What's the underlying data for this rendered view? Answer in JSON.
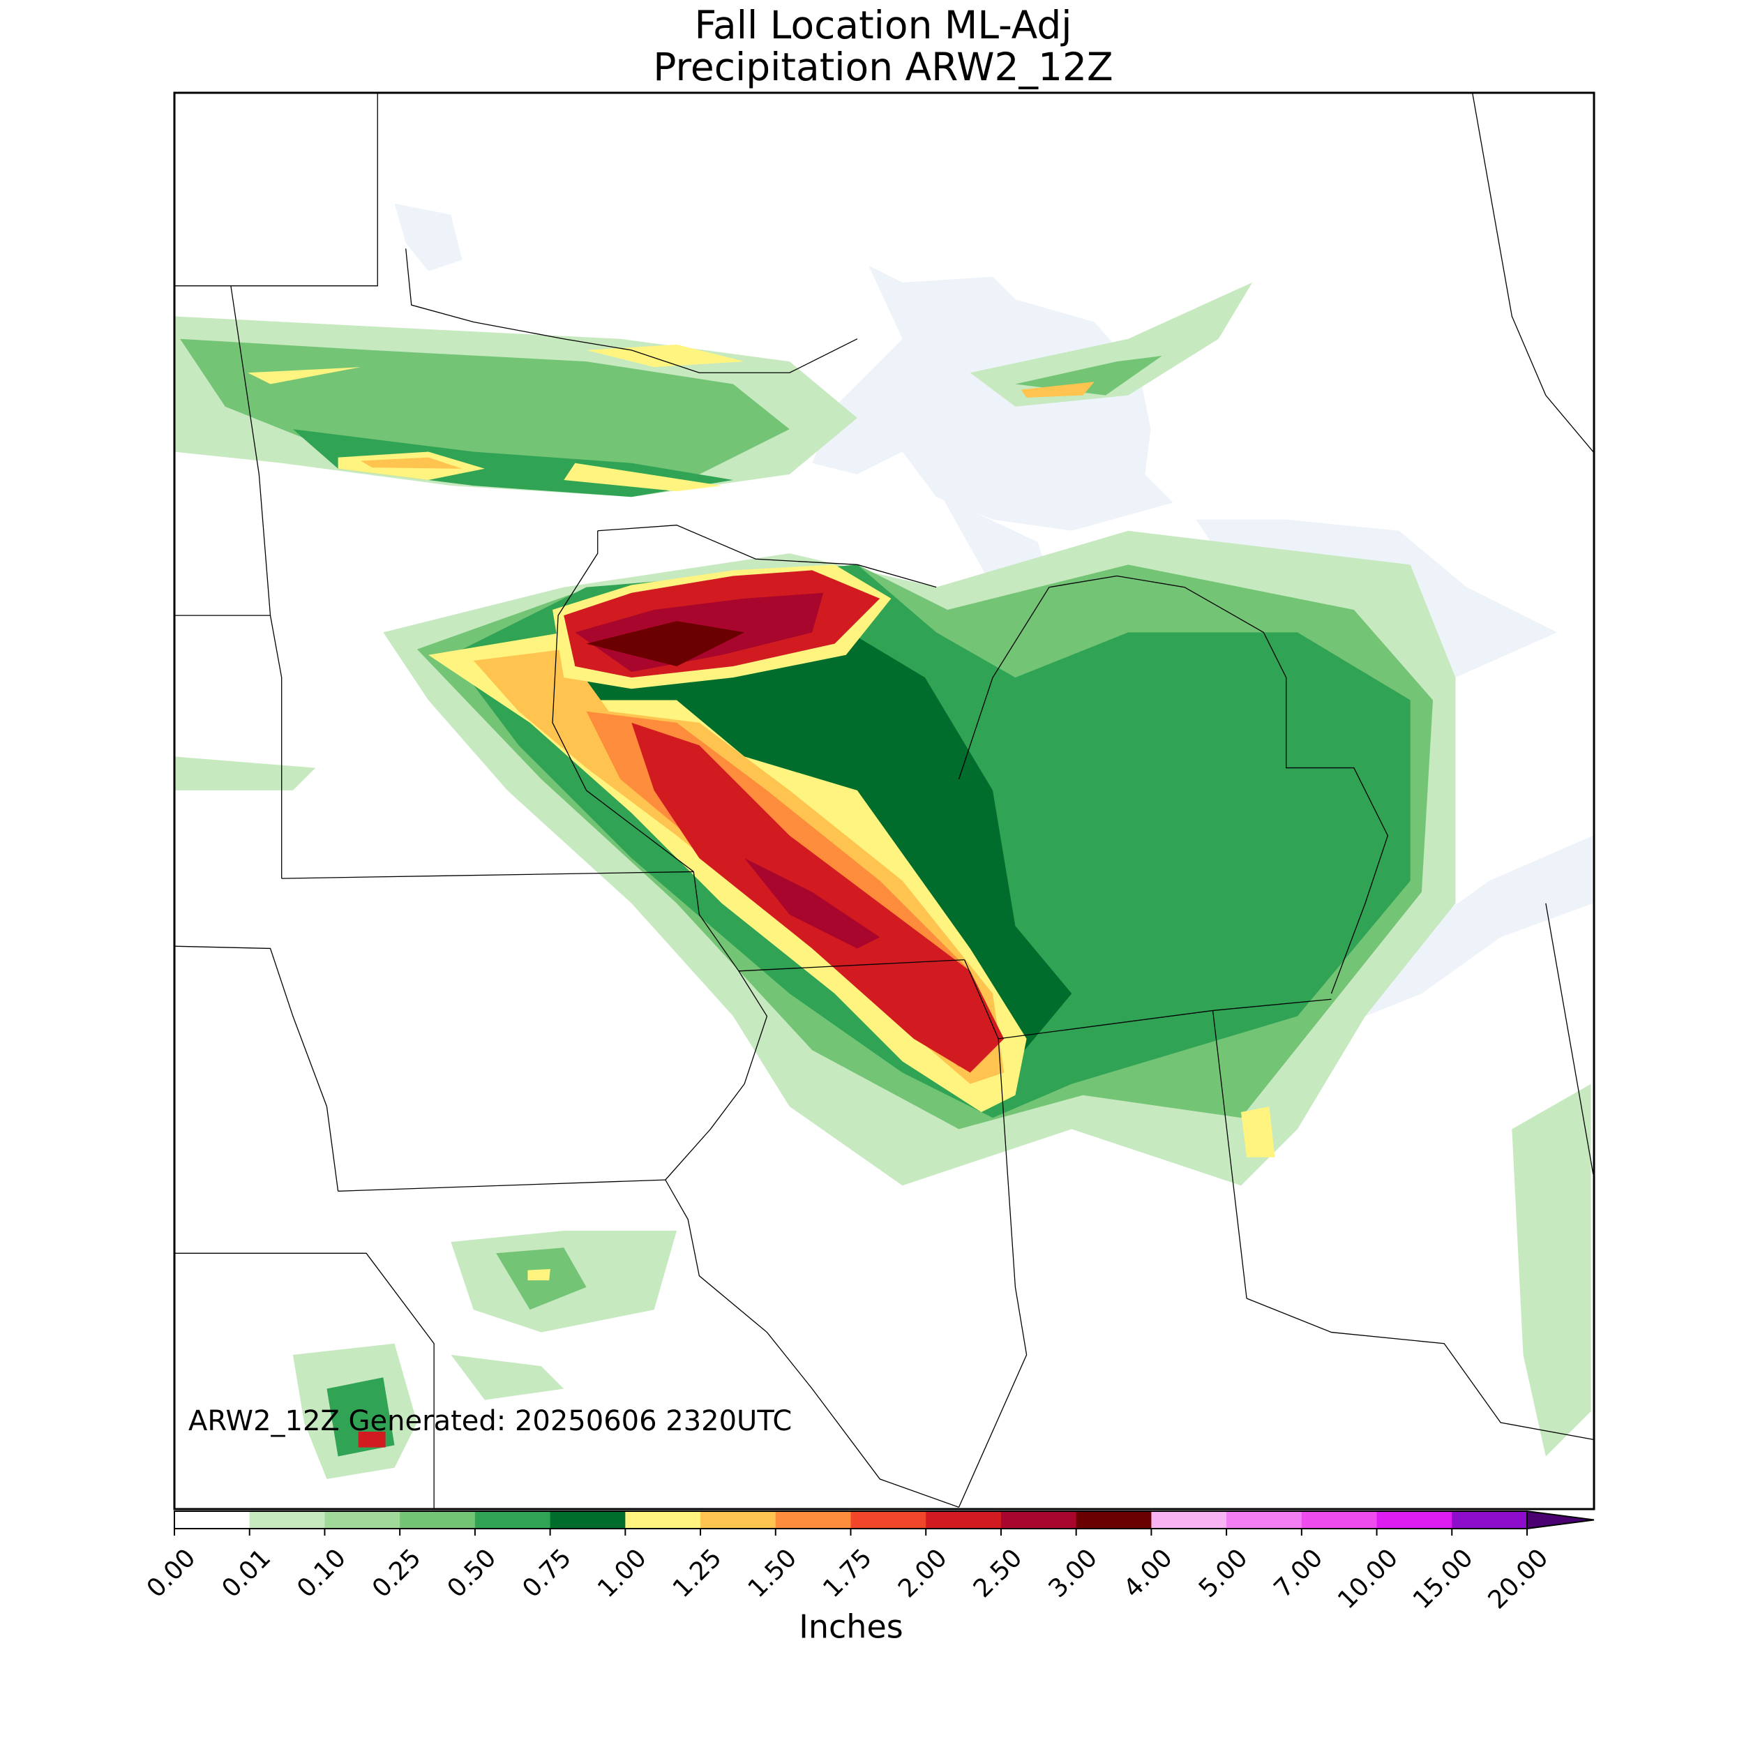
{
  "chart_data": {
    "type": "map",
    "title": "Fall Location ML-Adj",
    "subtitle": "Precipitation ARW2_12Z",
    "annotation": "ARW2_12Z Generated: 20250606 2320UTC",
    "colorbar": {
      "label": "Inches",
      "ticks": [
        {
          "value": 0,
          "label": "0.00"
        },
        {
          "value": 0.01,
          "label": "0.01"
        },
        {
          "value": 0.1,
          "label": "0.10"
        },
        {
          "value": 0.25,
          "label": "0.25"
        },
        {
          "value": 0.5,
          "label": "0.50"
        },
        {
          "value": 0.75,
          "label": "0.75"
        },
        {
          "value": 1,
          "label": "1.00"
        },
        {
          "value": 1.25,
          "label": "1.25"
        },
        {
          "value": 1.5,
          "label": "1.50"
        },
        {
          "value": 1.75,
          "label": "1.75"
        },
        {
          "value": 2,
          "label": "2.00"
        },
        {
          "value": 2.5,
          "label": "2.50"
        },
        {
          "value": 3,
          "label": "3.00"
        },
        {
          "value": 4,
          "label": "4.00"
        },
        {
          "value": 5,
          "label": "5.00"
        },
        {
          "value": 7,
          "label": "7.00"
        },
        {
          "value": 10,
          "label": "10.00"
        },
        {
          "value": 15,
          "label": "15.00"
        },
        {
          "value": 20,
          "label": "20.00"
        }
      ],
      "colors": [
        "#ffffff",
        "#c7e9c0",
        "#a1d99b",
        "#74c476",
        "#31a354",
        "#006d2c",
        "#fff480",
        "#fec44f",
        "#fd8d3c",
        "#f0462a",
        "#d21b20",
        "#a8062c",
        "#6b0000",
        "#f7b3f2",
        "#f37df3",
        "#ef4cf0",
        "#dd1cf0",
        "#8e0ccc"
      ],
      "extend_color": "#4a0070"
    }
  }
}
